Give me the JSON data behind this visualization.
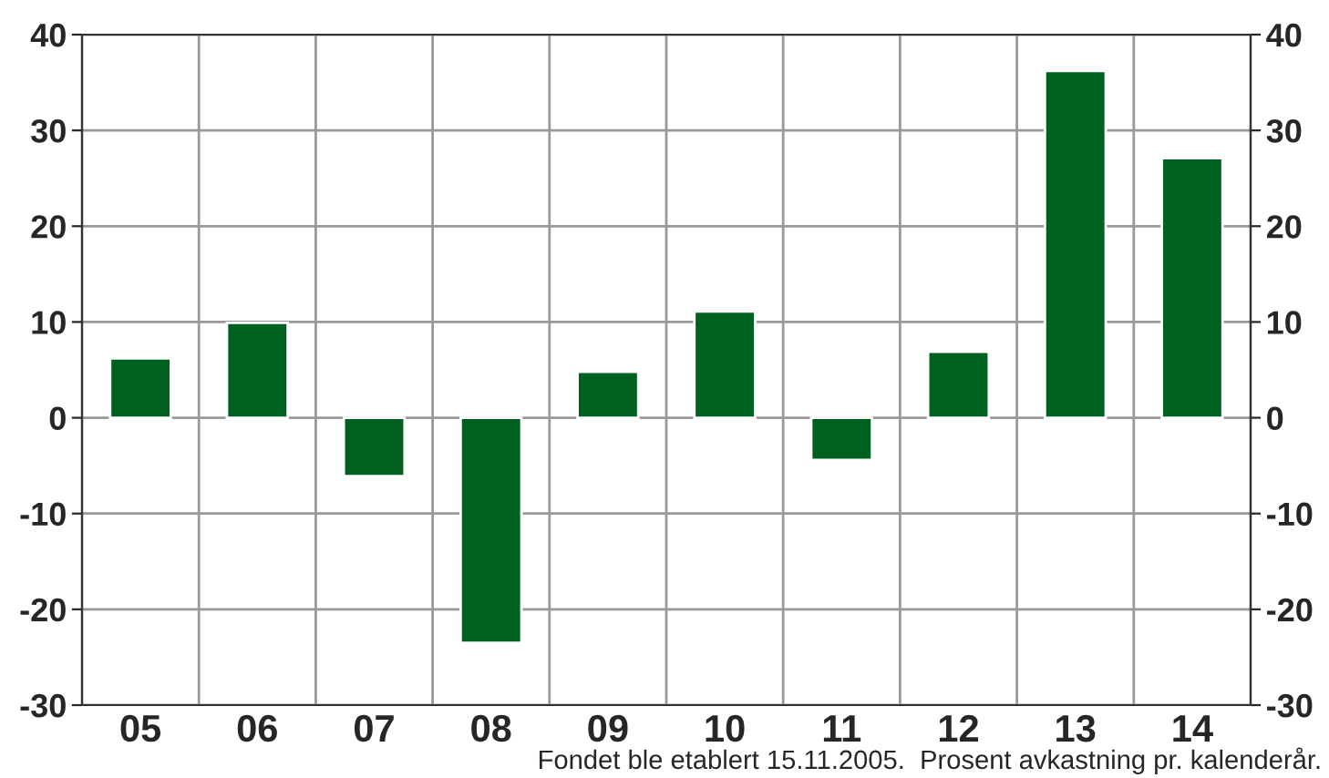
{
  "chart_data": {
    "type": "bar",
    "categories": [
      "05",
      "06",
      "07",
      "08",
      "09",
      "10",
      "11",
      "12",
      "13",
      "14"
    ],
    "values": [
      6.2,
      9.9,
      -6.1,
      -23.5,
      4.8,
      11.1,
      -4.4,
      6.9,
      36.2,
      27.1
    ],
    "color": "#006020",
    "ylim": [
      -30,
      40
    ],
    "yticks": [
      -30,
      -20,
      -10,
      0,
      10,
      20,
      30,
      40
    ],
    "y2lim": [
      -30,
      40
    ],
    "y2ticks": [
      -30,
      -20,
      -10,
      0,
      10,
      20,
      30,
      40
    ],
    "grid": true,
    "legend": false,
    "annotations": [
      "Fondet ble etablert 15.11.2005.  Prosent avkastning pr. kalenderår."
    ]
  }
}
